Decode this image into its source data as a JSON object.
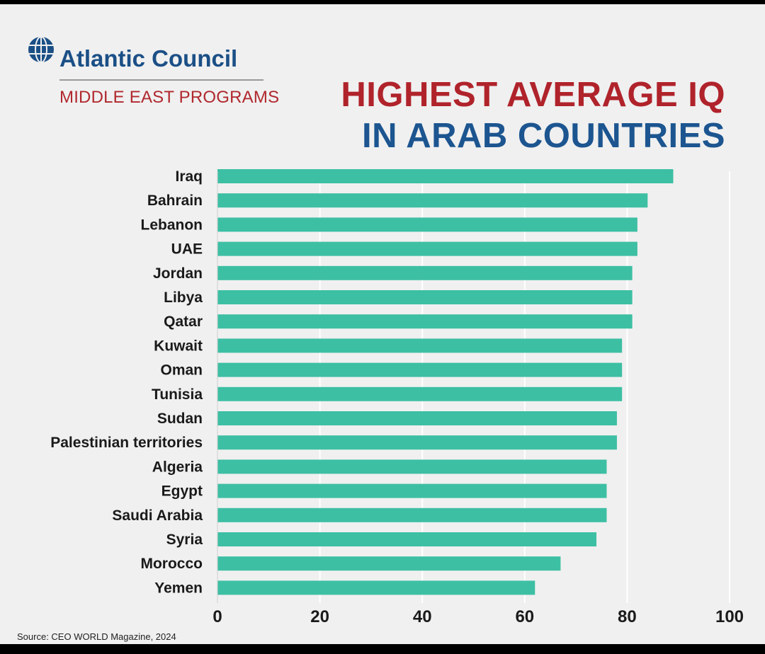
{
  "header": {
    "logo_name": "Atlantic Council",
    "logo_subtitle": "MIDDLE EAST PROGRAMS",
    "logo_icon": "globe-icon",
    "title_line1": "HIGHEST AVERAGE IQ",
    "title_line2": "IN ARAB COUNTRIES"
  },
  "footer": {
    "source": "Source: CEO WORLD Magazine, 2024"
  },
  "colors": {
    "bar": "#3dbfa3",
    "title_red": "#b0232b",
    "title_blue": "#1c5590",
    "logo_blue": "#1b4f86",
    "background": "#f0f0f0",
    "grid": "#ffffff"
  },
  "chart_data": {
    "type": "bar",
    "orientation": "horizontal",
    "title": "HIGHEST AVERAGE IQ IN ARAB COUNTRIES",
    "categories": [
      "Iraq",
      "Bahrain",
      "Lebanon",
      "UAE",
      "Jordan",
      "Libya",
      "Qatar",
      "Kuwait",
      "Oman",
      "Tunisia",
      "Sudan",
      "Palestinian territories",
      "Algeria",
      "Egypt",
      "Saudi Arabia",
      "Syria",
      "Morocco",
      "Yemen"
    ],
    "values": [
      89,
      84,
      82,
      82,
      81,
      81,
      81,
      79,
      79,
      79,
      78,
      78,
      76,
      76,
      76,
      74,
      67,
      62
    ],
    "xlim": [
      0,
      100
    ],
    "xticks": [
      0,
      20,
      40,
      60,
      80,
      100
    ],
    "xlabel": "",
    "ylabel": "",
    "grid": true,
    "legend": "none"
  }
}
